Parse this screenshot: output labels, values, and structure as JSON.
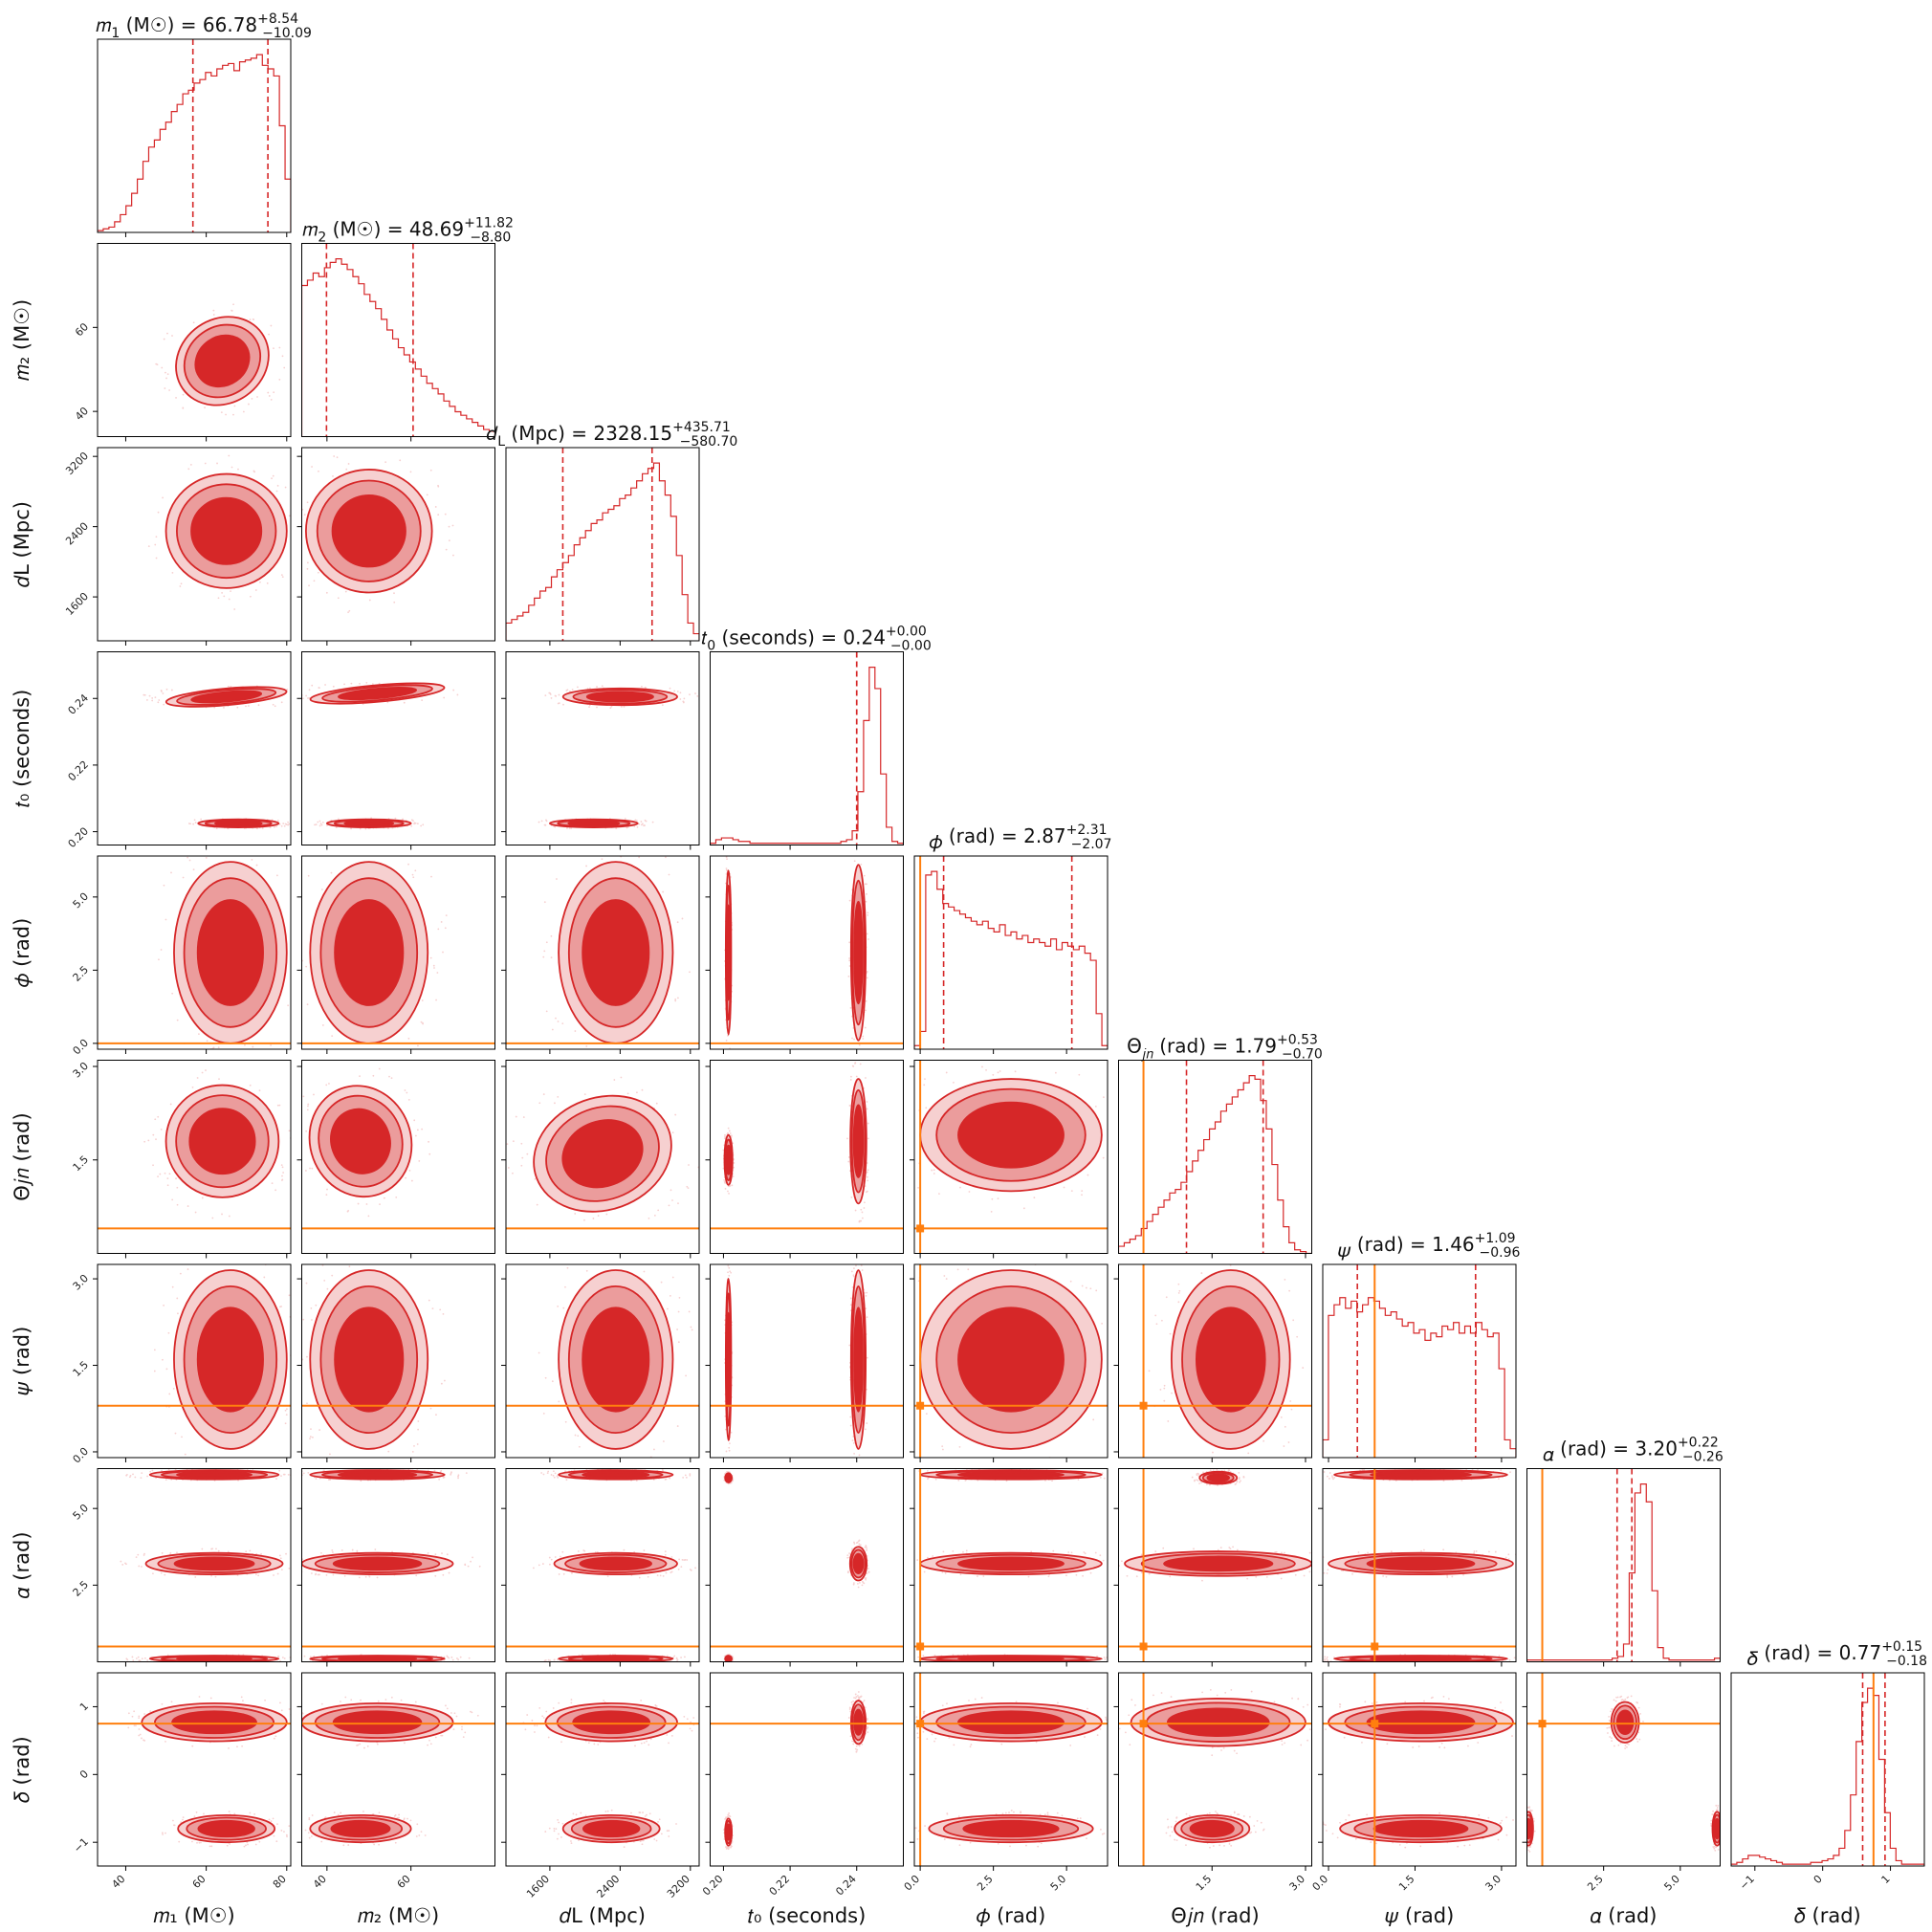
{
  "colors": {
    "posterior": "#d62728",
    "posterior_light": "#eb9c9c",
    "posterior_lighter": "#f6d0d0",
    "truth": "#ff7f0e",
    "frame": "#000000"
  },
  "chart_data": {
    "type": "corner",
    "description": "Corner plot of posterior samples for a binary black hole merger",
    "parameters": [
      {
        "key": "m1",
        "label": "m1 (M☉)",
        "axis_label": "𝑚₁ (M☉)",
        "range": [
          33,
          81
        ],
        "ticks": [
          40,
          60,
          80
        ],
        "tick_labels": [
          "40",
          "60",
          "80"
        ],
        "median": 66.78,
        "plus": "+8.54",
        "minus": "−10.09",
        "title": "m1 (M☉) = 66.78 +8.54 −10.09",
        "truth": null
      },
      {
        "key": "m2",
        "label": "m2 (M☉)",
        "axis_label": "𝑚₂ (M☉)",
        "range": [
          34,
          80
        ],
        "ticks": [
          40,
          60
        ],
        "tick_labels": [
          "40",
          "60"
        ],
        "median": 48.69,
        "plus": "+11.82",
        "minus": "−8.80",
        "title": "m2 (M☉) = 48.69 +11.82 −8.80",
        "truth": null
      },
      {
        "key": "dL",
        "label": "dL (Mpc)",
        "axis_label": "𝑑L (Mpc)",
        "range": [
          1100,
          3300
        ],
        "ticks": [
          1600,
          2400,
          3200
        ],
        "tick_labels": [
          "1600",
          "2400",
          "3200"
        ],
        "median": 2328.15,
        "plus": "+435.71",
        "minus": "−580.70",
        "title": "dL (Mpc) = 2328.15 +435.71 −580.70",
        "truth": null
      },
      {
        "key": "t0",
        "label": "t0 (seconds)",
        "axis_label": "𝑡₀ (seconds)",
        "range": [
          0.196,
          0.254
        ],
        "ticks": [
          0.2,
          0.22,
          0.24
        ],
        "tick_labels": [
          "0.20",
          "0.22",
          "0.24"
        ],
        "median": 0.24,
        "plus": "+0.00",
        "minus": "−0.00",
        "title": "t0 (seconds) = 0.24 +0.00 −0.00",
        "truth": null
      },
      {
        "key": "phi",
        "label": "φ (rad)",
        "axis_label": "𝜙 (rad)",
        "range": [
          -0.2,
          6.4
        ],
        "ticks": [
          0.0,
          2.5,
          5.0
        ],
        "tick_labels": [
          "0.0",
          "2.5",
          "5.0"
        ],
        "median": 2.87,
        "plus": "+2.31",
        "minus": "−2.07",
        "title": "φ (rad) = 2.87 +2.31 −2.07",
        "truth": 0.0
      },
      {
        "key": "theta_jn",
        "label": "Θjn (rad)",
        "axis_label": "Θ𝑗𝑛 (rad)",
        "range": [
          0.0,
          3.1
        ],
        "ticks": [
          1.5,
          3.0
        ],
        "tick_labels": [
          "1.5",
          "3.0"
        ],
        "median": 1.79,
        "plus": "+0.53",
        "minus": "−0.70",
        "title": "Θjn (rad) = 1.79 +0.53 −0.70",
        "truth": 0.4
      },
      {
        "key": "psi",
        "label": "ψ (rad)",
        "axis_label": "𝜓 (rad)",
        "range": [
          -0.1,
          3.25
        ],
        "ticks": [
          0.0,
          1.5,
          3.0
        ],
        "tick_labels": [
          "0.0",
          "1.5",
          "3.0"
        ],
        "median": 1.46,
        "plus": "+1.09",
        "minus": "−0.96",
        "title": "ψ (rad) = 1.46 +1.09 −0.96",
        "truth": 0.8
      },
      {
        "key": "alpha",
        "label": "α (rad)",
        "axis_label": "𝛼 (rad)",
        "range": [
          0.0,
          6.3
        ],
        "ticks": [
          2.5,
          5.0
        ],
        "tick_labels": [
          "2.5",
          "5.0"
        ],
        "median": 3.2,
        "plus": "+0.22",
        "minus": "−0.26",
        "title": "α (rad) = 3.20 +0.22 −0.26",
        "truth": 0.5
      },
      {
        "key": "delta",
        "label": "δ (rad)",
        "axis_label": "𝛿 (rad)",
        "range": [
          -1.35,
          1.5
        ],
        "ticks": [
          -1,
          0,
          1
        ],
        "tick_labels": [
          "−1",
          "0",
          "1"
        ],
        "median": 0.77,
        "plus": "+0.15",
        "minus": "−0.18",
        "title": "δ (rad) = 0.77 +0.15 −0.18",
        "truth": 0.75
      }
    ],
    "title_parts": [
      {
        "sym": "𝑚",
        "sub": "1",
        "unit": " (M☉)",
        "val": " = 66.78",
        "sup": "+8.54",
        "inf": "−10.09"
      },
      {
        "sym": "𝑚",
        "sub": "2",
        "unit": " (M☉)",
        "val": " = 48.69",
        "sup": "+11.82",
        "inf": "−8.80"
      },
      {
        "sym": "𝑑",
        "sub": "L",
        "unit": " (Mpc)",
        "val": " = 2328.15",
        "sup": "+435.71",
        "inf": "−580.70"
      },
      {
        "sym": "𝑡",
        "sub": "0",
        "unit": " (seconds)",
        "val": " = 0.24",
        "sup": "+0.00",
        "inf": "−0.00"
      },
      {
        "sym": "𝜙",
        "sub": "",
        "unit": " (rad)",
        "val": " = 2.87",
        "sup": "+2.31",
        "inf": "−2.07"
      },
      {
        "sym": "Θ",
        "sub": "𝑗𝑛",
        "unit": " (rad)",
        "val": " = 1.79",
        "sup": "+0.53",
        "inf": "−0.70"
      },
      {
        "sym": "𝜓",
        "sub": "",
        "unit": " (rad)",
        "val": " = 1.46",
        "sup": "+1.09",
        "inf": "−0.96"
      },
      {
        "sym": "𝛼",
        "sub": "",
        "unit": " (rad)",
        "val": " = 3.20",
        "sup": "+0.22",
        "inf": "−0.26"
      },
      {
        "sym": "𝛿",
        "sub": "",
        "unit": " (rad)",
        "val": " = 0.77",
        "sup": "+0.15",
        "inf": "−0.18"
      }
    ],
    "marginal_histograms": {
      "m1": [
        0.01,
        0.02,
        0.03,
        0.06,
        0.1,
        0.15,
        0.22,
        0.3,
        0.4,
        0.48,
        0.52,
        0.58,
        0.62,
        0.68,
        0.72,
        0.78,
        0.8,
        0.84,
        0.86,
        0.9,
        0.88,
        0.92,
        0.94,
        0.95,
        0.91,
        0.96,
        0.97,
        0.98,
        1.0,
        0.94,
        0.92,
        0.88,
        0.6,
        0.3
      ],
      "m2": [
        0.85,
        0.88,
        0.92,
        0.9,
        0.95,
        0.98,
        1.0,
        0.97,
        0.94,
        0.9,
        0.86,
        0.8,
        0.76,
        0.72,
        0.66,
        0.6,
        0.55,
        0.5,
        0.46,
        0.42,
        0.38,
        0.34,
        0.3,
        0.27,
        0.24,
        0.2,
        0.17,
        0.14,
        0.12,
        0.1,
        0.08,
        0.06,
        0.04,
        0.03
      ],
      "dL": [
        0.1,
        0.12,
        0.14,
        0.16,
        0.2,
        0.24,
        0.28,
        0.3,
        0.36,
        0.4,
        0.44,
        0.48,
        0.54,
        0.58,
        0.62,
        0.66,
        0.68,
        0.72,
        0.74,
        0.76,
        0.8,
        0.82,
        0.86,
        0.9,
        0.94,
        0.97,
        1.0,
        0.9,
        0.82,
        0.7,
        0.48,
        0.26,
        0.1,
        0.04
      ],
      "t0": [
        0.01,
        0.03,
        0.04,
        0.04,
        0.03,
        0.02,
        0.02,
        0.01,
        0.01,
        0.01,
        0.01,
        0.01,
        0.01,
        0.01,
        0.01,
        0.01,
        0.01,
        0.01,
        0.01,
        0.01,
        0.01,
        0.01,
        0.01,
        0.02,
        0.03,
        0.08,
        0.3,
        0.7,
        1.0,
        0.88,
        0.4,
        0.1,
        0.02,
        0.01
      ],
      "phi": [
        0.02,
        0.1,
        0.98,
        1.0,
        0.9,
        0.82,
        0.8,
        0.78,
        0.76,
        0.74,
        0.72,
        0.7,
        0.72,
        0.68,
        0.66,
        0.7,
        0.64,
        0.66,
        0.62,
        0.64,
        0.6,
        0.62,
        0.6,
        0.58,
        0.62,
        0.56,
        0.6,
        0.58,
        0.56,
        0.58,
        0.54,
        0.5,
        0.2,
        0.02
      ],
      "theta_jn": [
        0.04,
        0.06,
        0.08,
        0.1,
        0.14,
        0.18,
        0.22,
        0.26,
        0.3,
        0.34,
        0.36,
        0.4,
        0.46,
        0.52,
        0.58,
        0.64,
        0.7,
        0.74,
        0.8,
        0.84,
        0.88,
        0.92,
        0.96,
        1.0,
        0.98,
        0.86,
        0.7,
        0.5,
        0.3,
        0.15,
        0.06,
        0.02,
        0.01,
        0.0
      ],
      "psi": [
        0.1,
        0.8,
        0.86,
        0.9,
        0.84,
        0.88,
        0.82,
        0.86,
        0.9,
        0.88,
        0.84,
        0.8,
        0.82,
        0.78,
        0.74,
        0.76,
        0.7,
        0.72,
        0.66,
        0.7,
        0.68,
        0.74,
        0.72,
        0.76,
        0.7,
        0.74,
        0.7,
        0.76,
        0.72,
        0.68,
        0.7,
        0.5,
        0.1,
        0.05
      ],
      "alpha": [
        0.01,
        0.01,
        0.01,
        0.01,
        0.01,
        0.01,
        0.01,
        0.01,
        0.01,
        0.01,
        0.01,
        0.01,
        0.01,
        0.01,
        0.01,
        0.02,
        0.03,
        0.1,
        0.5,
        0.95,
        1.0,
        0.9,
        0.4,
        0.08,
        0.02,
        0.01,
        0.01,
        0.01,
        0.01,
        0.01,
        0.01,
        0.01,
        0.01,
        0.02
      ],
      "delta": [
        0.01,
        0.02,
        0.04,
        0.06,
        0.06,
        0.05,
        0.04,
        0.03,
        0.02,
        0.01,
        0.01,
        0.01,
        0.01,
        0.01,
        0.02,
        0.02,
        0.03,
        0.04,
        0.06,
        0.1,
        0.2,
        0.4,
        0.7,
        0.92,
        1.0,
        0.96,
        0.6,
        0.3,
        0.1,
        0.03,
        0.01,
        0.01,
        0.01,
        0.01
      ]
    },
    "joint_blobs": {
      "note": "approximate 2D credible regions per lower-triangle panel, in data units: [cx, cy, rx, ry, rotation_deg]",
      "m1|m2": [
        [
          64,
          52,
          12,
          10,
          -35
        ]
      ],
      "m1|dL": [
        [
          65,
          2350,
          15,
          650,
          0
        ]
      ],
      "m1|t0": [
        [
          65,
          0.2405,
          15,
          0.0025,
          -5
        ],
        [
          68,
          0.2025,
          10,
          0.0012,
          0
        ]
      ],
      "m1|phi": [
        [
          66,
          3.1,
          14,
          3.1,
          0
        ]
      ],
      "m1|theta_jn": [
        [
          64,
          1.8,
          14,
          0.9,
          0
        ]
      ],
      "m1|psi": [
        [
          66,
          1.6,
          14,
          1.55,
          0
        ]
      ],
      "m1|alpha": [
        [
          62,
          3.2,
          17,
          0.35,
          0
        ],
        [
          62,
          6.1,
          16,
          0.15,
          0
        ],
        [
          62,
          0.1,
          16,
          0.1,
          0
        ]
      ],
      "m1|delta": [
        [
          62,
          0.77,
          18,
          0.28,
          0
        ],
        [
          65,
          -0.8,
          12,
          0.2,
          0
        ]
      ],
      "m2|dL": [
        [
          50,
          2350,
          15,
          700,
          0
        ]
      ],
      "m2|t0": [
        [
          52,
          0.2415,
          16,
          0.0025,
          -5
        ],
        [
          50,
          0.2025,
          10,
          0.0012,
          0
        ]
      ],
      "m2|phi": [
        [
          50,
          3.1,
          14,
          3.1,
          0
        ]
      ],
      "m2|theta_jn": [
        [
          48,
          1.8,
          12,
          0.9,
          -20
        ]
      ],
      "m2|psi": [
        [
          50,
          1.6,
          14,
          1.55,
          0
        ]
      ],
      "m2|alpha": [
        [
          52,
          3.2,
          18,
          0.35,
          0
        ],
        [
          52,
          6.1,
          16,
          0.15,
          0
        ],
        [
          52,
          0.1,
          16,
          0.1,
          0
        ]
      ],
      "m2|delta": [
        [
          52,
          0.77,
          18,
          0.28,
          0
        ],
        [
          48,
          -0.8,
          12,
          0.2,
          0
        ]
      ],
      "dL|t0": [
        [
          2400,
          0.2405,
          650,
          0.0025,
          0
        ],
        [
          2100,
          0.2025,
          500,
          0.0012,
          0
        ]
      ],
      "dL|phi": [
        [
          2350,
          3.1,
          650,
          3.1,
          0
        ]
      ],
      "dL|theta_jn": [
        [
          2200,
          1.6,
          800,
          0.9,
          -20
        ]
      ],
      "dL|psi": [
        [
          2350,
          1.6,
          650,
          1.55,
          0
        ]
      ],
      "dL|alpha": [
        [
          2350,
          3.2,
          700,
          0.35,
          0
        ],
        [
          2350,
          6.1,
          650,
          0.15,
          0
        ],
        [
          2350,
          0.1,
          650,
          0.1,
          0
        ]
      ],
      "dL|delta": [
        [
          2300,
          0.77,
          750,
          0.28,
          0
        ],
        [
          2300,
          -0.8,
          550,
          0.2,
          0
        ]
      ],
      "t0|phi": [
        [
          0.2405,
          3.1,
          0.0022,
          3.0,
          0
        ],
        [
          0.2015,
          3.1,
          0.0008,
          2.8,
          0
        ]
      ],
      "t0|theta_jn": [
        [
          0.2405,
          1.8,
          0.0024,
          1.0,
          0
        ],
        [
          0.2015,
          1.5,
          0.0012,
          0.4,
          0
        ]
      ],
      "t0|psi": [
        [
          0.2405,
          1.6,
          0.0022,
          1.55,
          0
        ],
        [
          0.2015,
          1.6,
          0.0008,
          1.4,
          0
        ]
      ],
      "t0|alpha": [
        [
          0.2405,
          3.2,
          0.0025,
          0.55,
          0
        ],
        [
          0.2015,
          6.0,
          0.001,
          0.15,
          0
        ],
        [
          0.2015,
          0.1,
          0.001,
          0.1,
          0
        ]
      ],
      "t0|delta": [
        [
          0.2405,
          0.77,
          0.0022,
          0.32,
          0
        ],
        [
          0.2015,
          -0.85,
          0.001,
          0.2,
          0
        ]
      ],
      "phi|theta_jn": [
        [
          3.1,
          1.9,
          3.1,
          0.9,
          0
        ]
      ],
      "phi|psi": [
        [
          3.1,
          1.6,
          3.1,
          1.55,
          0
        ]
      ],
      "phi|alpha": [
        [
          3.1,
          3.2,
          3.1,
          0.35,
          0
        ],
        [
          3.1,
          6.1,
          3.1,
          0.15,
          0
        ],
        [
          3.1,
          0.1,
          3.1,
          0.1,
          0
        ]
      ],
      "phi|delta": [
        [
          3.1,
          0.77,
          3.1,
          0.28,
          0
        ],
        [
          3.1,
          -0.8,
          2.8,
          0.2,
          0
        ]
      ],
      "theta_jn|psi": [
        [
          1.8,
          1.6,
          0.95,
          1.55,
          0
        ]
      ],
      "theta_jn|alpha": [
        [
          1.6,
          3.2,
          1.5,
          0.4,
          0
        ],
        [
          1.6,
          6.0,
          0.3,
          0.2,
          0
        ]
      ],
      "theta_jn|delta": [
        [
          1.6,
          0.77,
          1.4,
          0.35,
          0
        ],
        [
          1.5,
          -0.8,
          0.6,
          0.2,
          0
        ]
      ],
      "psi|alpha": [
        [
          1.6,
          3.2,
          1.6,
          0.35,
          0
        ],
        [
          1.6,
          6.1,
          1.5,
          0.15,
          0
        ],
        [
          1.6,
          0.1,
          1.5,
          0.1,
          0
        ]
      ],
      "psi|delta": [
        [
          1.6,
          0.77,
          1.6,
          0.28,
          0
        ],
        [
          1.6,
          -0.8,
          1.4,
          0.2,
          0
        ]
      ],
      "alpha|delta": [
        [
          3.2,
          0.77,
          0.45,
          0.3,
          0
        ],
        [
          6.2,
          -0.8,
          0.15,
          0.25,
          0
        ],
        [
          0.05,
          -0.8,
          0.15,
          0.25,
          0
        ]
      ]
    }
  }
}
